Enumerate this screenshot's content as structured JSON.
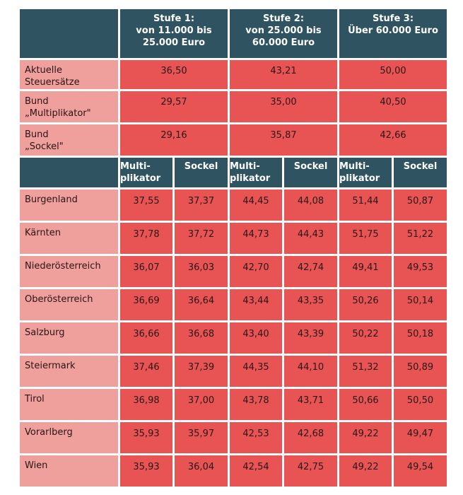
{
  "header": {
    "stufe1": [
      "Stufe 1:",
      "von 11.000 bis",
      "25.000 Euro"
    ],
    "stufe2": [
      "Stufe 2:",
      "von 25.000 bis",
      "60.000 Euro"
    ],
    "stufe3": [
      "Stufe 3:",
      "Über 60.000 Euro"
    ]
  },
  "summary": [
    {
      "label": [
        "Aktuelle",
        "Steuersätze"
      ],
      "values": [
        "36,50",
        "43,21",
        "50,00"
      ]
    },
    {
      "label": [
        "Bund",
        "„Multiplikator\""
      ],
      "values": [
        "29,57",
        "35,00",
        "40,50"
      ]
    },
    {
      "label": [
        "Bund",
        "„Sockel\""
      ],
      "values": [
        "29,16",
        "35,87",
        "42,66"
      ]
    }
  ],
  "subheader": {
    "multi": [
      "Multi-",
      "plikator"
    ],
    "sockel": "Sockel"
  },
  "states": [
    {
      "name": "Burgenland",
      "values": [
        "37,55",
        "37,37",
        "44,45",
        "44,08",
        "51,44",
        "50,87"
      ]
    },
    {
      "name": "Kärnten",
      "values": [
        "37,78",
        "37,72",
        "44,73",
        "44,43",
        "51,75",
        "51,22"
      ]
    },
    {
      "name": "Niederösterreich",
      "values": [
        "36,07",
        "36,03",
        "42,70",
        "42,74",
        "49,41",
        "49,53"
      ]
    },
    {
      "name": "Oberösterreich",
      "values": [
        "36,69",
        "36,64",
        "43,44",
        "43,35",
        "50,26",
        "50,14"
      ]
    },
    {
      "name": "Salzburg",
      "values": [
        "36,66",
        "36,68",
        "43,40",
        "43,39",
        "50,22",
        "50,18"
      ]
    },
    {
      "name": "Steiermark",
      "values": [
        "37,46",
        "37,39",
        "44,35",
        "44,10",
        "51,32",
        "50,89"
      ]
    },
    {
      "name": "Tirol",
      "values": [
        "36,98",
        "37,00",
        "43,78",
        "43,71",
        "50,66",
        "50,50"
      ]
    },
    {
      "name": "Vorarlberg",
      "values": [
        "35,93",
        "35,97",
        "42,53",
        "42,68",
        "49,22",
        "49,47"
      ]
    },
    {
      "name": "Wien",
      "values": [
        "35,93",
        "36,04",
        "42,54",
        "42,75",
        "49,22",
        "49,54"
      ]
    }
  ],
  "colors": {
    "header_bg": "#2f5360",
    "label_bg": "#f0a09c",
    "value_bg": "#e85454"
  }
}
